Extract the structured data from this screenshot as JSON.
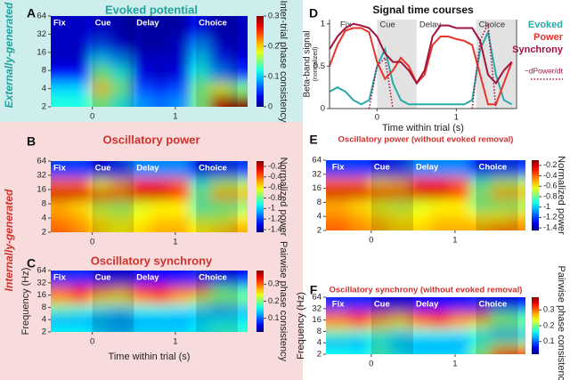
{
  "side_labels": [
    {
      "text": "Externally-generated",
      "color": "#1fa39c"
    },
    {
      "text": "Internally-generated",
      "color": "#d0312d"
    }
  ],
  "epochs": [
    {
      "label": "Fix",
      "start": -0.5,
      "end": 0,
      "shaded": false
    },
    {
      "label": "Cue",
      "start": 0,
      "end": 0.5,
      "shaded": true
    },
    {
      "label": "Delay",
      "start": 0.5,
      "end": 1.25,
      "shaded": false
    },
    {
      "label": "Choice",
      "start": 1.25,
      "end": 1.75,
      "shaded": true
    }
  ],
  "chart_data": [
    {
      "type": "heatmap",
      "letter": "A",
      "title": "Evoked potential",
      "title_color": "#1fa39c",
      "colorbar_label": "Inter-trial phase consistency",
      "colormap": "jet",
      "xlim": [
        -0.5,
        1.87
      ],
      "ylim": [
        2,
        64
      ],
      "log_y": true,
      "xticks": [
        0,
        1
      ],
      "yticks": [
        2,
        4,
        8,
        16,
        32,
        64
      ],
      "clim": [
        0,
        0.3
      ],
      "cticks": [
        0,
        0.1,
        0.2,
        0.3
      ],
      "x": [
        -0.38,
        -0.14,
        0.1,
        0.34,
        0.58,
        0.82,
        1.06,
        1.3,
        1.54,
        1.78
      ],
      "y": [
        2.5,
        4,
        7,
        13,
        20,
        40
      ],
      "z": [
        [
          0.12,
          0.12,
          0.15,
          0.12,
          0.08,
          0.07,
          0.08,
          0.15,
          0.28,
          0.3
        ],
        [
          0.1,
          0.1,
          0.2,
          0.15,
          0.06,
          0.05,
          0.06,
          0.15,
          0.18,
          0.15
        ],
        [
          0.04,
          0.04,
          0.15,
          0.12,
          0.03,
          0.02,
          0.03,
          0.12,
          0.08,
          0.05
        ],
        [
          0.02,
          0.02,
          0.1,
          0.08,
          0.02,
          0.02,
          0.02,
          0.1,
          0.05,
          0.03
        ],
        [
          0.02,
          0.02,
          0.06,
          0.03,
          0.01,
          0.01,
          0.02,
          0.08,
          0.03,
          0.02
        ],
        [
          0.02,
          0.02,
          0.03,
          0.02,
          0.01,
          0.01,
          0.01,
          0.04,
          0.02,
          0.02
        ]
      ]
    },
    {
      "type": "heatmap",
      "letter": "B",
      "title": "Oscillatory power",
      "title_color": "#d0312d",
      "colorbar_label": "Normalized power",
      "colormap": "jet",
      "xlim": [
        -0.5,
        1.87
      ],
      "ylim": [
        2,
        64
      ],
      "log_y": true,
      "xticks": [
        0,
        1
      ],
      "yticks": [
        2,
        4,
        8,
        16,
        32,
        64
      ],
      "clim": [
        -1.45,
        -0.1
      ],
      "cticks": [
        -1.4,
        -1.2,
        -1,
        -0.8,
        -0.6,
        -0.4,
        -0.2
      ],
      "x": [
        -0.38,
        -0.14,
        0.1,
        0.34,
        0.58,
        0.82,
        1.06,
        1.3,
        1.54,
        1.78
      ],
      "y": [
        2.5,
        4,
        7,
        13,
        20,
        40
      ],
      "z": [
        [
          -0.4,
          -0.45,
          -0.55,
          -0.6,
          -0.55,
          -0.5,
          -0.5,
          -0.6,
          -0.55,
          -0.5
        ],
        [
          -0.45,
          -0.5,
          -0.6,
          -0.65,
          -0.6,
          -0.55,
          -0.55,
          -0.7,
          -0.7,
          -0.6
        ],
        [
          -0.5,
          -0.55,
          -0.7,
          -0.75,
          -0.65,
          -0.6,
          -0.6,
          -0.85,
          -0.8,
          -0.8
        ],
        [
          -0.2,
          -0.2,
          -0.35,
          -0.4,
          -0.2,
          -0.2,
          -0.3,
          -0.8,
          -0.5,
          -0.5
        ],
        [
          -0.4,
          -0.4,
          -0.6,
          -0.5,
          -0.3,
          -0.3,
          -0.4,
          -0.9,
          -0.7,
          -0.7
        ],
        [
          -1.2,
          -1.2,
          -1.3,
          -1.2,
          -1.1,
          -1.1,
          -1.1,
          -1.3,
          -1.2,
          -1.2
        ]
      ]
    },
    {
      "type": "heatmap",
      "letter": "C",
      "title": "Oscillatory synchrony",
      "title_color": "#d0312d",
      "colorbar_label": "Pairwise phase consistency",
      "colormap": "jet",
      "xlabel": "Time within trial (s)",
      "ylabel": "Frequency (Hz)",
      "xlim": [
        -0.5,
        1.87
      ],
      "ylim": [
        2,
        64
      ],
      "log_y": true,
      "xticks": [
        0,
        1
      ],
      "yticks": [
        2,
        4,
        8,
        16,
        32,
        64
      ],
      "clim": [
        0.02,
        0.38
      ],
      "cticks": [
        0.1,
        0.2,
        0.3
      ],
      "x": [
        -0.38,
        -0.14,
        0.1,
        0.34,
        0.58,
        0.82,
        1.06,
        1.3,
        1.54,
        1.78
      ],
      "y": [
        2.5,
        4,
        7,
        13,
        20,
        40
      ],
      "z": [
        [
          0.15,
          0.15,
          0.14,
          0.13,
          0.14,
          0.14,
          0.14,
          0.15,
          0.17,
          0.17
        ],
        [
          0.12,
          0.12,
          0.12,
          0.11,
          0.12,
          0.12,
          0.12,
          0.14,
          0.15,
          0.15
        ],
        [
          0.18,
          0.17,
          0.15,
          0.14,
          0.16,
          0.16,
          0.15,
          0.14,
          0.12,
          0.13
        ],
        [
          0.28,
          0.3,
          0.25,
          0.24,
          0.28,
          0.3,
          0.27,
          0.22,
          0.2,
          0.2
        ],
        [
          0.3,
          0.33,
          0.3,
          0.28,
          0.32,
          0.33,
          0.3,
          0.3,
          0.2,
          0.18
        ],
        [
          0.08,
          0.08,
          0.07,
          0.06,
          0.07,
          0.07,
          0.07,
          0.08,
          0.07,
          0.07
        ]
      ]
    },
    {
      "type": "line",
      "letter": "D",
      "title": "Signal time courses",
      "title_color": "#111111",
      "xlabel": "Time within trial (s)",
      "ylabel": "Beta-band signal",
      "ylabel_note": "(normalized)",
      "xlim": [
        -0.6,
        1.76
      ],
      "ylim": [
        0,
        1.05
      ],
      "xticks": [
        0,
        1
      ],
      "yticks": [
        0,
        0.5,
        1
      ],
      "legend": "right",
      "x": [
        -0.6,
        -0.5,
        -0.4,
        -0.3,
        -0.2,
        -0.1,
        0,
        0.1,
        0.2,
        0.3,
        0.4,
        0.5,
        0.6,
        0.7,
        0.8,
        0.9,
        1,
        1.1,
        1.2,
        1.3,
        1.4,
        1.5,
        1.6,
        1.7
      ],
      "series": [
        {
          "name": "Evoked",
          "color": "#2aa9a9",
          "dash": false,
          "values": [
            0.2,
            0.25,
            0.2,
            0.1,
            0.05,
            0.1,
            0.5,
            0.7,
            0.3,
            0.1,
            0.05,
            0.05,
            0.05,
            0.05,
            0.05,
            0.05,
            0.05,
            0.05,
            0.1,
            0.7,
            0.9,
            0.4,
            0.1,
            0.05
          ]
        },
        {
          "name": "Power",
          "color": "#e8332a",
          "dash": false,
          "values": [
            0.5,
            0.75,
            0.92,
            0.95,
            0.95,
            0.9,
            0.55,
            0.35,
            0.45,
            0.6,
            0.5,
            0.3,
            0.4,
            0.75,
            0.85,
            0.85,
            0.82,
            0.8,
            0.75,
            0.4,
            0.05,
            0.05,
            0.3,
            0.55
          ]
        },
        {
          "name": "Synchrony",
          "color": "#a3143c",
          "dash": false,
          "values": [
            0.7,
            0.85,
            0.95,
            1.0,
            0.98,
            0.95,
            0.85,
            0.65,
            0.55,
            0.55,
            0.45,
            0.3,
            0.45,
            0.85,
            0.98,
            0.98,
            0.95,
            0.95,
            0.95,
            0.8,
            0.4,
            0.3,
            0.45,
            0.55
          ]
        },
        {
          "name": "−dPower/dt",
          "color": "#a3143c",
          "dash": true,
          "values": [
            null,
            null,
            null,
            null,
            null,
            0,
            0.5,
            0.6,
            0,
            null,
            null,
            null,
            null,
            null,
            null,
            null,
            null,
            null,
            0,
            0.8,
            1.0,
            0,
            null,
            null
          ]
        }
      ]
    },
    {
      "type": "heatmap",
      "letter": "E",
      "title": "Oscillatory power (without evoked removal)",
      "title_color": "#d0312d",
      "colorbar_label": "Normalized power",
      "colormap": "jet",
      "xlim": [
        -0.54,
        1.84
      ],
      "ylim": [
        2,
        64
      ],
      "log_y": true,
      "xticks": [
        0,
        1
      ],
      "yticks": [
        2,
        4,
        8,
        16,
        32,
        64
      ],
      "clim": [
        -1.45,
        -0.1
      ],
      "cticks": [
        -1.4,
        -1.2,
        -1,
        -0.8,
        -0.6,
        -0.4,
        -0.2
      ],
      "x": [
        -0.38,
        -0.14,
        0.1,
        0.34,
        0.58,
        0.82,
        1.06,
        1.3,
        1.54,
        1.78
      ],
      "y": [
        2.5,
        4,
        7,
        13,
        20,
        40
      ],
      "z": [
        [
          -0.4,
          -0.45,
          -0.5,
          -0.55,
          -0.55,
          -0.5,
          -0.5,
          -0.5,
          -0.45,
          -0.45
        ],
        [
          -0.45,
          -0.5,
          -0.55,
          -0.6,
          -0.6,
          -0.55,
          -0.55,
          -0.6,
          -0.6,
          -0.55
        ],
        [
          -0.5,
          -0.55,
          -0.65,
          -0.7,
          -0.65,
          -0.6,
          -0.6,
          -0.8,
          -0.75,
          -0.75
        ],
        [
          -0.2,
          -0.2,
          -0.3,
          -0.4,
          -0.2,
          -0.2,
          -0.3,
          -0.75,
          -0.5,
          -0.5
        ],
        [
          -0.4,
          -0.4,
          -0.55,
          -0.5,
          -0.3,
          -0.3,
          -0.4,
          -0.85,
          -0.7,
          -0.7
        ],
        [
          -1.2,
          -1.2,
          -1.25,
          -1.2,
          -1.1,
          -1.1,
          -1.1,
          -1.25,
          -1.2,
          -1.2
        ]
      ]
    },
    {
      "type": "heatmap",
      "letter": "F",
      "title": "Oscillatory synchrony (without evoked removal)",
      "title_color": "#d0312d",
      "colorbar_label": "Pairwise phase consistency",
      "colormap": "jet",
      "ylabel": "Frequency (Hz)",
      "xlim": [
        -0.54,
        1.84
      ],
      "ylim": [
        2,
        64
      ],
      "log_y": true,
      "xticks": [
        0,
        1
      ],
      "yticks": [
        2,
        4,
        8,
        16,
        32,
        64
      ],
      "clim": [
        0.02,
        0.38
      ],
      "cticks": [
        0.1,
        0.2,
        0.3
      ],
      "x": [
        -0.38,
        -0.14,
        0.1,
        0.34,
        0.58,
        0.82,
        1.06,
        1.3,
        1.54,
        1.78
      ],
      "y": [
        2.5,
        4,
        7,
        13,
        20,
        40
      ],
      "z": [
        [
          0.16,
          0.15,
          0.18,
          0.15,
          0.14,
          0.14,
          0.14,
          0.2,
          0.3,
          0.32
        ],
        [
          0.12,
          0.12,
          0.16,
          0.13,
          0.12,
          0.12,
          0.12,
          0.17,
          0.2,
          0.2
        ],
        [
          0.18,
          0.17,
          0.17,
          0.15,
          0.16,
          0.16,
          0.15,
          0.16,
          0.13,
          0.13
        ],
        [
          0.28,
          0.3,
          0.26,
          0.24,
          0.28,
          0.3,
          0.27,
          0.23,
          0.2,
          0.2
        ],
        [
          0.3,
          0.33,
          0.3,
          0.28,
          0.32,
          0.33,
          0.3,
          0.31,
          0.2,
          0.18
        ],
        [
          0.08,
          0.08,
          0.07,
          0.06,
          0.07,
          0.07,
          0.07,
          0.08,
          0.07,
          0.07
        ]
      ]
    }
  ]
}
